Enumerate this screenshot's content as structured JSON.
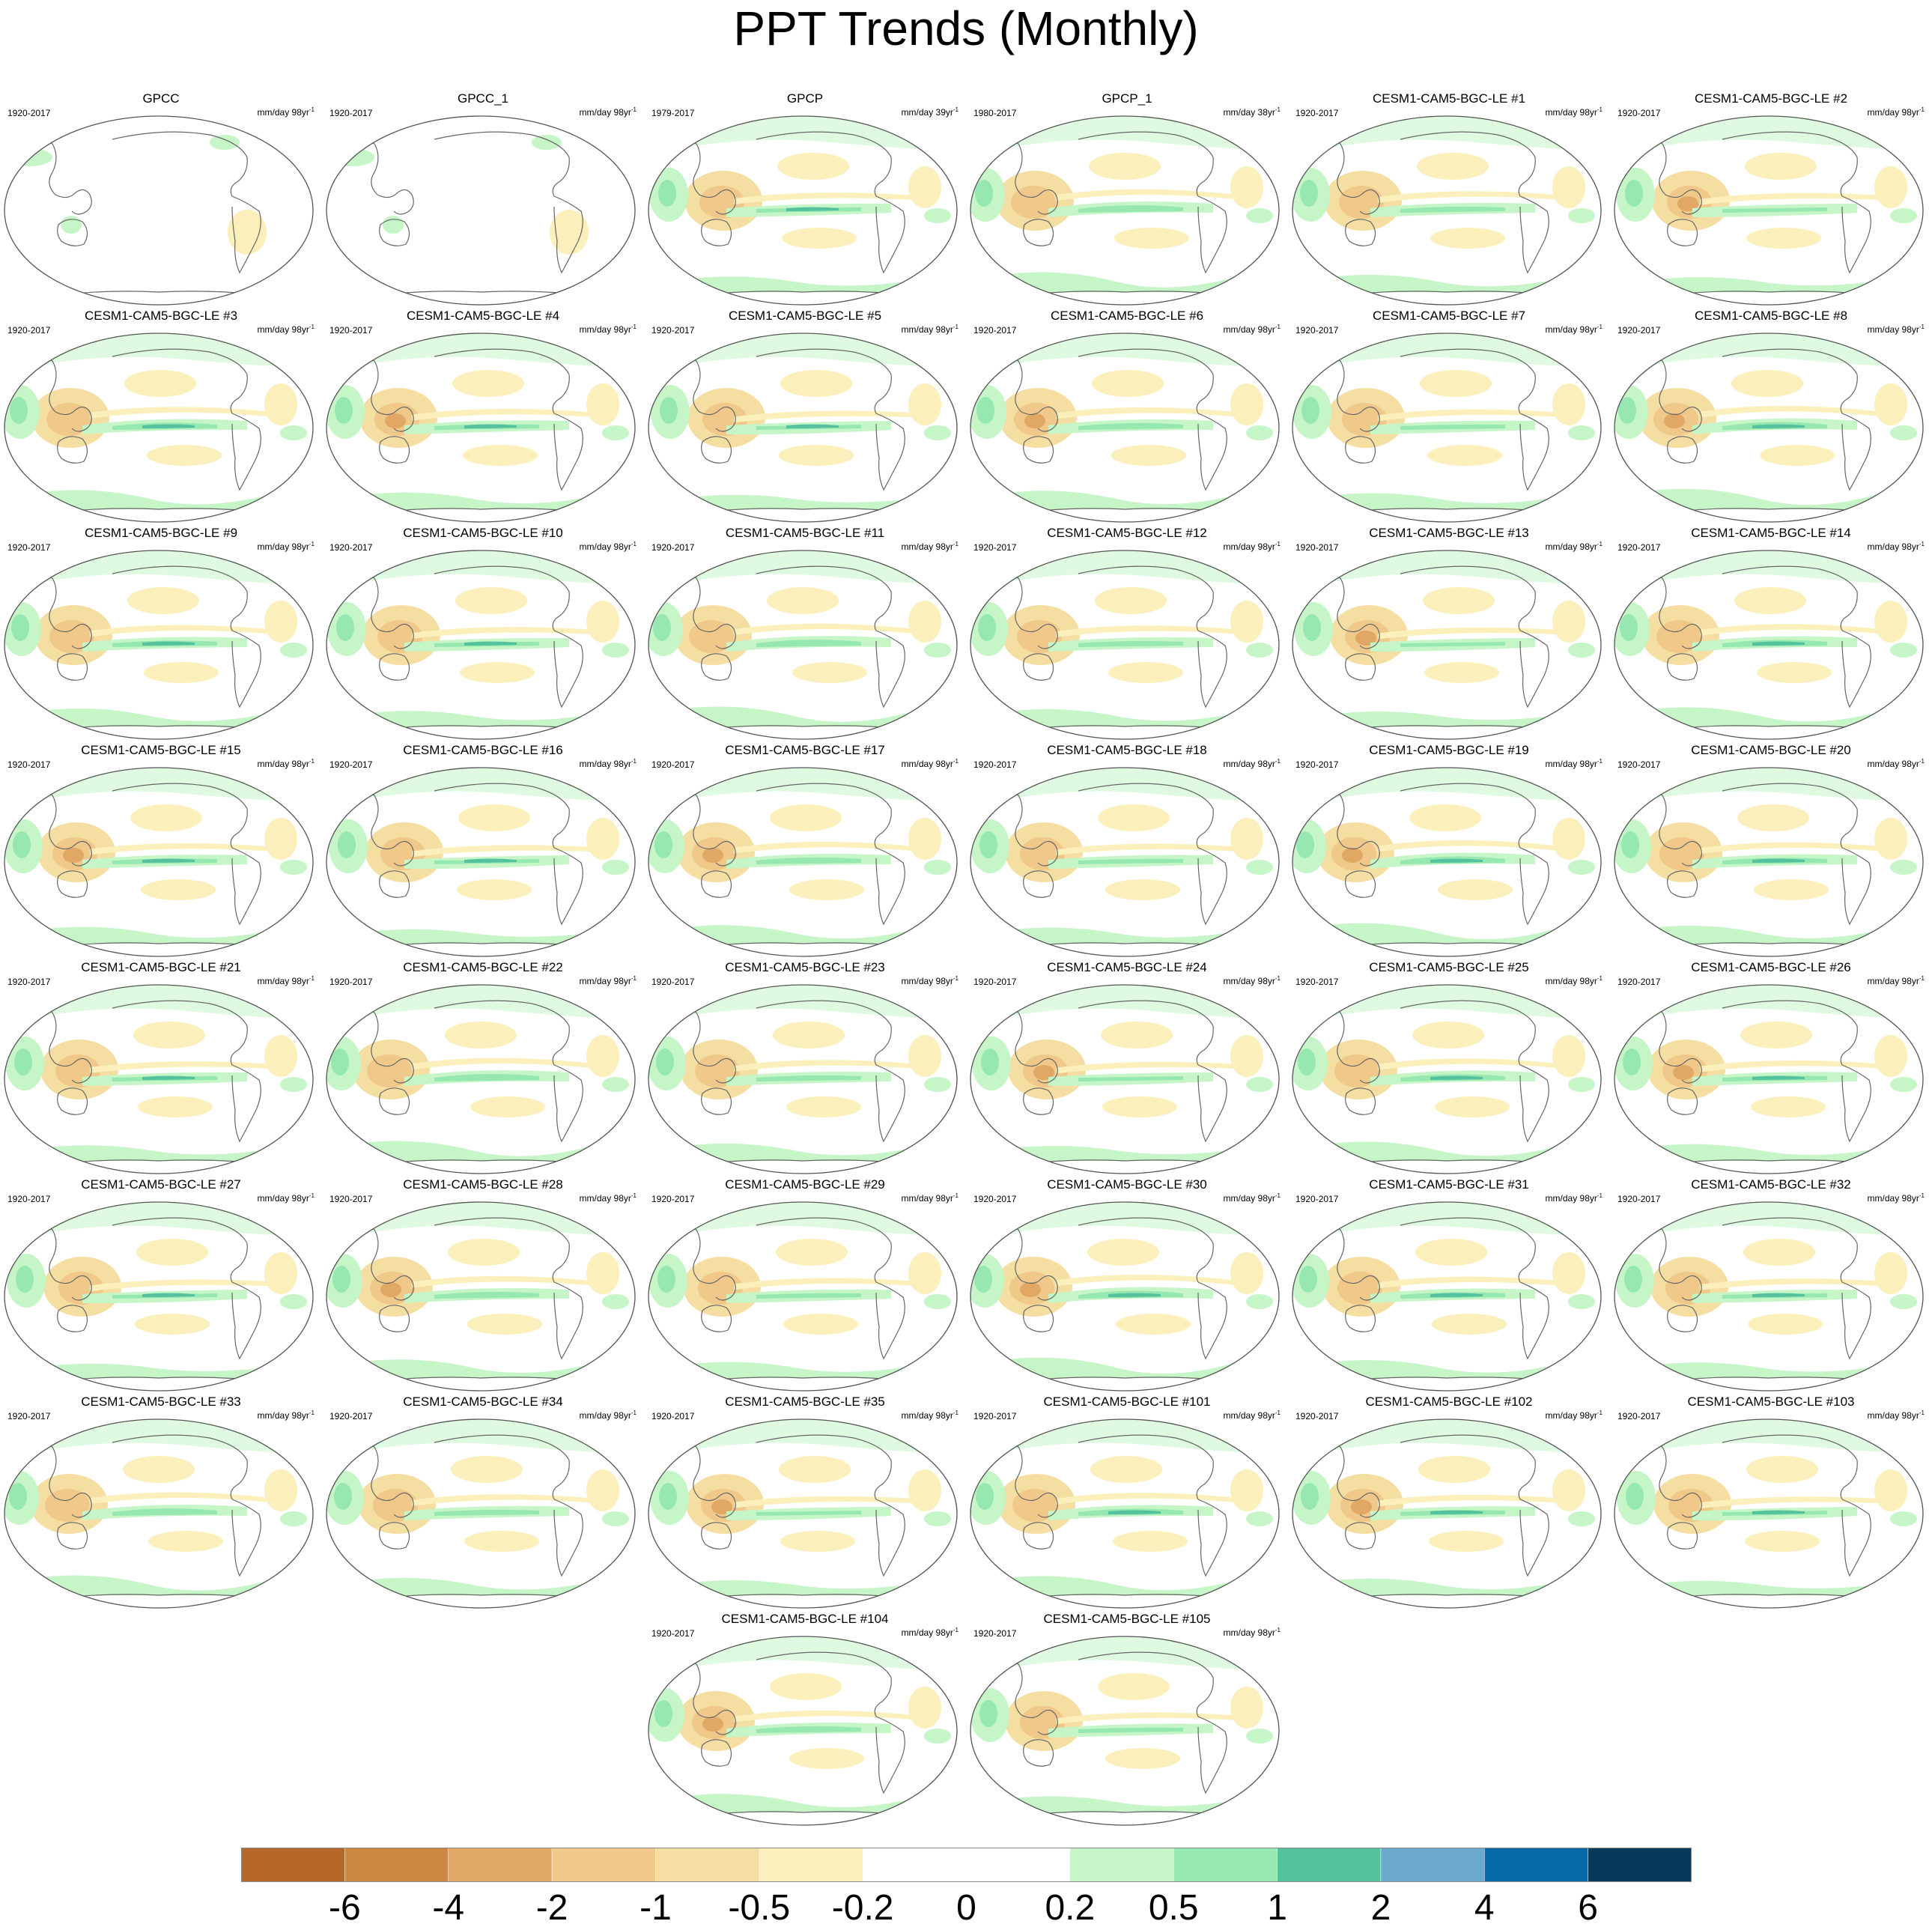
{
  "title": "PPT Trends (Monthly)",
  "chart_data": {
    "type": "heatmap",
    "projection": "Robinson, Pacific-centered (global maps)",
    "variable": "Precipitation trend",
    "panels": [
      {
        "title": "GPCC",
        "period": "1920-2017",
        "units": "mm/day 98yr",
        "sup": "-1",
        "sparse": true
      },
      {
        "title": "GPCC_1",
        "period": "1920-2017",
        "units": "mm/day 98yr",
        "sup": "-1",
        "sparse": true
      },
      {
        "title": "GPCP",
        "period": "1979-2017",
        "units": "mm/day 39yr",
        "sup": "-1",
        "sparse": false
      },
      {
        "title": "GPCP_1",
        "period": "1980-2017",
        "units": "mm/day 38yr",
        "sup": "-1",
        "sparse": false
      },
      {
        "title": "CESM1-CAM5-BGC-LE #1",
        "period": "1920-2017",
        "units": "mm/day 98yr",
        "sup": "-1"
      },
      {
        "title": "CESM1-CAM5-BGC-LE #2",
        "period": "1920-2017",
        "units": "mm/day 98yr",
        "sup": "-1"
      },
      {
        "title": "CESM1-CAM5-BGC-LE #3",
        "period": "1920-2017",
        "units": "mm/day 98yr",
        "sup": "-1"
      },
      {
        "title": "CESM1-CAM5-BGC-LE #4",
        "period": "1920-2017",
        "units": "mm/day 98yr",
        "sup": "-1"
      },
      {
        "title": "CESM1-CAM5-BGC-LE #5",
        "period": "1920-2017",
        "units": "mm/day 98yr",
        "sup": "-1"
      },
      {
        "title": "CESM1-CAM5-BGC-LE #6",
        "period": "1920-2017",
        "units": "mm/day 98yr",
        "sup": "-1"
      },
      {
        "title": "CESM1-CAM5-BGC-LE #7",
        "period": "1920-2017",
        "units": "mm/day 98yr",
        "sup": "-1"
      },
      {
        "title": "CESM1-CAM5-BGC-LE #8",
        "period": "1920-2017",
        "units": "mm/day 98yr",
        "sup": "-1"
      },
      {
        "title": "CESM1-CAM5-BGC-LE #9",
        "period": "1920-2017",
        "units": "mm/day 98yr",
        "sup": "-1"
      },
      {
        "title": "CESM1-CAM5-BGC-LE #10",
        "period": "1920-2017",
        "units": "mm/day 98yr",
        "sup": "-1"
      },
      {
        "title": "CESM1-CAM5-BGC-LE #11",
        "period": "1920-2017",
        "units": "mm/day 98yr",
        "sup": "-1"
      },
      {
        "title": "CESM1-CAM5-BGC-LE #12",
        "period": "1920-2017",
        "units": "mm/day 98yr",
        "sup": "-1"
      },
      {
        "title": "CESM1-CAM5-BGC-LE #13",
        "period": "1920-2017",
        "units": "mm/day 98yr",
        "sup": "-1"
      },
      {
        "title": "CESM1-CAM5-BGC-LE #14",
        "period": "1920-2017",
        "units": "mm/day 98yr",
        "sup": "-1"
      },
      {
        "title": "CESM1-CAM5-BGC-LE #15",
        "period": "1920-2017",
        "units": "mm/day 98yr",
        "sup": "-1"
      },
      {
        "title": "CESM1-CAM5-BGC-LE #16",
        "period": "1920-2017",
        "units": "mm/day 98yr",
        "sup": "-1"
      },
      {
        "title": "CESM1-CAM5-BGC-LE #17",
        "period": "1920-2017",
        "units": "mm/day 98yr",
        "sup": "-1"
      },
      {
        "title": "CESM1-CAM5-BGC-LE #18",
        "period": "1920-2017",
        "units": "mm/day 98yr",
        "sup": "-1"
      },
      {
        "title": "CESM1-CAM5-BGC-LE #19",
        "period": "1920-2017",
        "units": "mm/day 98yr",
        "sup": "-1"
      },
      {
        "title": "CESM1-CAM5-BGC-LE #20",
        "period": "1920-2017",
        "units": "mm/day 98yr",
        "sup": "-1"
      },
      {
        "title": "CESM1-CAM5-BGC-LE #21",
        "period": "1920-2017",
        "units": "mm/day 98yr",
        "sup": "-1"
      },
      {
        "title": "CESM1-CAM5-BGC-LE #22",
        "period": "1920-2017",
        "units": "mm/day 98yr",
        "sup": "-1"
      },
      {
        "title": "CESM1-CAM5-BGC-LE #23",
        "period": "1920-2017",
        "units": "mm/day 98yr",
        "sup": "-1"
      },
      {
        "title": "CESM1-CAM5-BGC-LE #24",
        "period": "1920-2017",
        "units": "mm/day 98yr",
        "sup": "-1"
      },
      {
        "title": "CESM1-CAM5-BGC-LE #25",
        "period": "1920-2017",
        "units": "mm/day 98yr",
        "sup": "-1"
      },
      {
        "title": "CESM1-CAM5-BGC-LE #26",
        "period": "1920-2017",
        "units": "mm/day 98yr",
        "sup": "-1"
      },
      {
        "title": "CESM1-CAM5-BGC-LE #27",
        "period": "1920-2017",
        "units": "mm/day 98yr",
        "sup": "-1"
      },
      {
        "title": "CESM1-CAM5-BGC-LE #28",
        "period": "1920-2017",
        "units": "mm/day 98yr",
        "sup": "-1"
      },
      {
        "title": "CESM1-CAM5-BGC-LE #29",
        "period": "1920-2017",
        "units": "mm/day 98yr",
        "sup": "-1"
      },
      {
        "title": "CESM1-CAM5-BGC-LE #30",
        "period": "1920-2017",
        "units": "mm/day 98yr",
        "sup": "-1"
      },
      {
        "title": "CESM1-CAM5-BGC-LE #31",
        "period": "1920-2017",
        "units": "mm/day 98yr",
        "sup": "-1"
      },
      {
        "title": "CESM1-CAM5-BGC-LE #32",
        "period": "1920-2017",
        "units": "mm/day 98yr",
        "sup": "-1"
      },
      {
        "title": "CESM1-CAM5-BGC-LE #33",
        "period": "1920-2017",
        "units": "mm/day 98yr",
        "sup": "-1"
      },
      {
        "title": "CESM1-CAM5-BGC-LE #34",
        "period": "1920-2017",
        "units": "mm/day 98yr",
        "sup": "-1"
      },
      {
        "title": "CESM1-CAM5-BGC-LE #35",
        "period": "1920-2017",
        "units": "mm/day 98yr",
        "sup": "-1"
      },
      {
        "title": "CESM1-CAM5-BGC-LE #101",
        "period": "1920-2017",
        "units": "mm/day 98yr",
        "sup": "-1"
      },
      {
        "title": "CESM1-CAM5-BGC-LE #102",
        "period": "1920-2017",
        "units": "mm/day 98yr",
        "sup": "-1"
      },
      {
        "title": "CESM1-CAM5-BGC-LE #103",
        "period": "1920-2017",
        "units": "mm/day 98yr",
        "sup": "-1"
      },
      {
        "title": "CESM1-CAM5-BGC-LE #104",
        "period": "1920-2017",
        "units": "mm/day 98yr",
        "sup": "-1"
      },
      {
        "title": "CESM1-CAM5-BGC-LE #105",
        "period": "1920-2017",
        "units": "mm/day 98yr",
        "sup": "-1"
      }
    ],
    "colorbar": {
      "levels": [
        "-6",
        "-4",
        "-2",
        "-1",
        "-0.5",
        "-0.2",
        "0",
        "0.2",
        "0.5",
        "1",
        "2",
        "4",
        "6"
      ],
      "colors": [
        "#b5682a",
        "#cd873f",
        "#e1a764",
        "#f0c88a",
        "#f5dea2",
        "#fbf0bb",
        "#ffffff",
        "#ffffff",
        "#c6f6c8",
        "#97e8b0",
        "#55c29e",
        "#6aa9cc",
        "#0769a8",
        "#053a5a"
      ]
    }
  }
}
